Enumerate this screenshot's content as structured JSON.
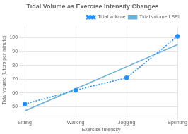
{
  "chart_data": {
    "type": "line",
    "title": "Tidal Volume as Exercise Intensity Changes",
    "xlabel": "Exercise Intensity",
    "ylabel": "Tidal volume (Liters per minute)",
    "categories": [
      "Sitting",
      "Walking",
      "Jogging",
      "Sprinting"
    ],
    "series": [
      {
        "name": "Tidal volume",
        "color": "#1e90ff",
        "values": [
          52,
          62,
          71,
          101
        ],
        "line_style": "dotted",
        "marker": "circle"
      },
      {
        "name": "Tidal volume LSRL",
        "color": "#6ab0d8",
        "values": [
          47,
          63,
          79,
          95
        ],
        "line_style": "solid",
        "marker": "none"
      }
    ],
    "ylim": [
      45,
      108
    ],
    "yticks": [
      50,
      60,
      70,
      80,
      90,
      100
    ],
    "grid": true,
    "legend": "upper right"
  }
}
